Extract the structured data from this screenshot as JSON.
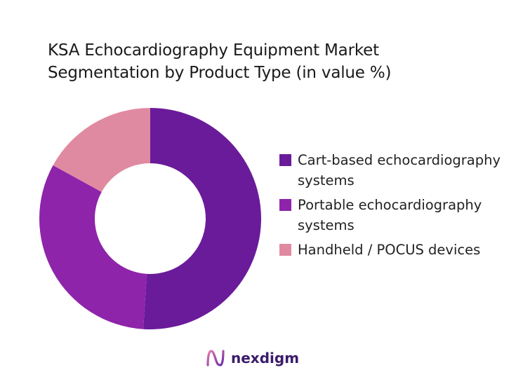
{
  "chart_data": {
    "type": "pie",
    "donut": true,
    "title_lines": [
      "KSA Echocardiography Equipment Market",
      "Segmentation by Product Type (in value %)"
    ],
    "categories": [
      "Cart-based echocardiography systems",
      "Portable echocardiography systems",
      "Handheld / POCUS devices"
    ],
    "values": [
      51,
      32,
      17
    ],
    "colors": [
      "#6a1b9a",
      "#8e24aa",
      "#e08aa1"
    ],
    "legend_placement": "right"
  },
  "logo": {
    "text": "nexdigm",
    "icon": "nexdigm-n-icon",
    "color": "#3b1b6b"
  }
}
